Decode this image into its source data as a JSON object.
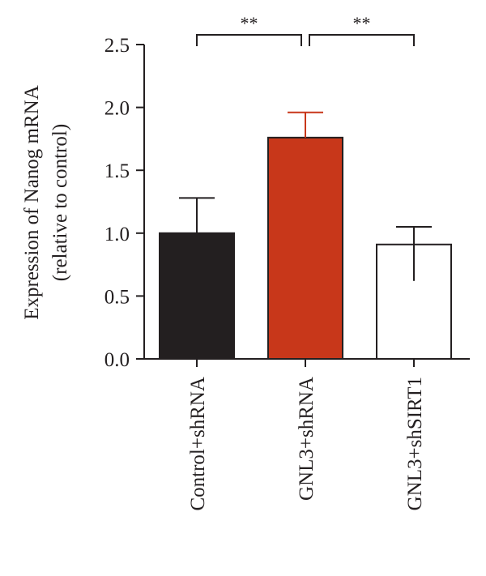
{
  "chart_data": {
    "type": "bar",
    "title": "",
    "xlabel": "",
    "ylabel": [
      "Expression of Nanog mRNA",
      "(relative to control)"
    ],
    "ylim": [
      0,
      2.5
    ],
    "yticks": [
      0.0,
      0.5,
      1.0,
      1.5,
      2.0,
      2.5
    ],
    "ytick_labels": [
      "0.0",
      "0.5",
      "1.0",
      "1.5",
      "2.0",
      "2.5"
    ],
    "categories": [
      "Control+shRNA",
      "GNL3+shRNA",
      "GNL3+shSIRT1"
    ],
    "values": [
      1.0,
      1.76,
      0.91
    ],
    "error_upper": [
      1.28,
      1.96,
      1.05
    ],
    "error_lower": [
      null,
      null,
      0.62
    ],
    "bar_colors": [
      "#231f20",
      "#c8371a",
      "#ffffff"
    ],
    "error_colors": [
      "#231f20",
      "#c8371a",
      "#231f20"
    ],
    "significance": [
      {
        "from": 0,
        "to": 1,
        "label": "**"
      },
      {
        "from": 1,
        "to": 2,
        "label": "**"
      }
    ],
    "grid": false,
    "legend": "none"
  }
}
